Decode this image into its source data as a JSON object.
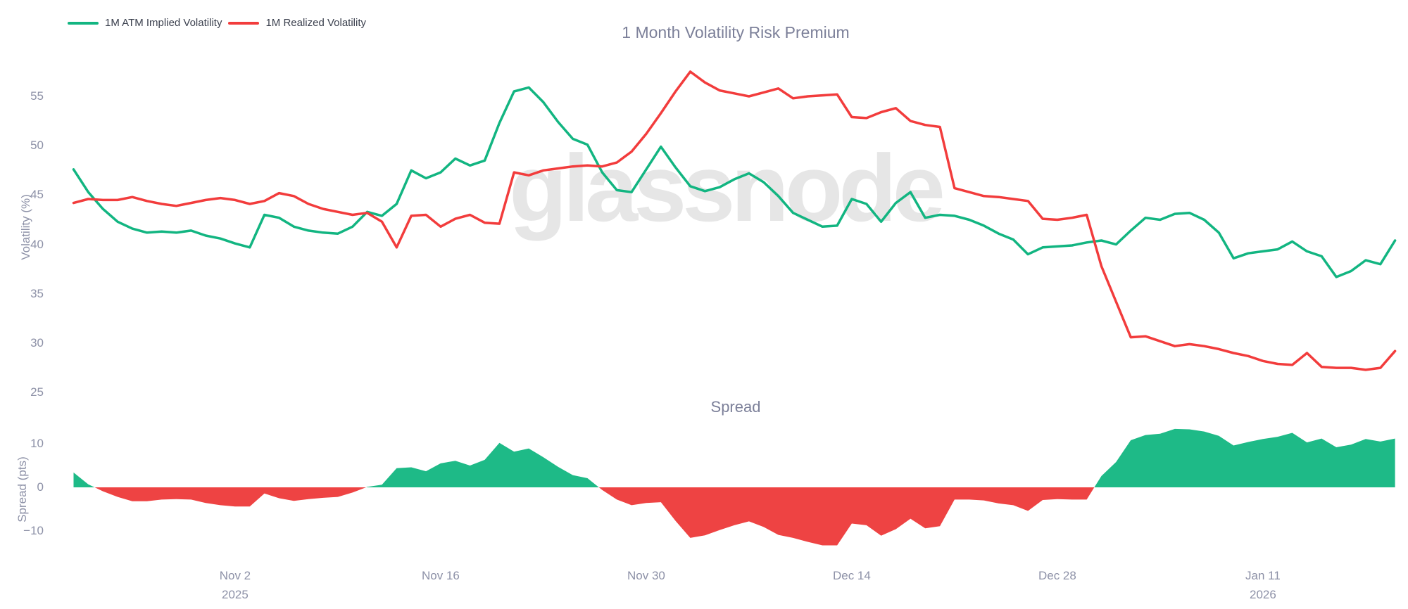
{
  "titles": {
    "main": "1 Month Volatility Risk Premium",
    "spread": "Spread"
  },
  "watermark": {
    "text": "glassnode"
  },
  "legend": {
    "items": [
      {
        "label": "1M ATM Implied Volatility",
        "color": "#12b581"
      },
      {
        "label": "1M Realized Volatility",
        "color": "#f23c3c"
      }
    ]
  },
  "axes": {
    "volatility_label": "Volatility (%)",
    "spread_label": "Spread (pts)",
    "volatility_ticks": [
      "55",
      "50",
      "45",
      "40",
      "35",
      "30",
      "25"
    ],
    "spread_ticks": [
      "10",
      "0",
      "−10"
    ],
    "x_ticks": [
      {
        "label": "Nov 2",
        "year": "2025",
        "day": 11
      },
      {
        "label": "Nov 16",
        "year": "",
        "day": 25
      },
      {
        "label": "Nov 30",
        "year": "",
        "day": 39
      },
      {
        "label": "Dec 14",
        "year": "",
        "day": 53
      },
      {
        "label": "Dec 28",
        "year": "",
        "day": 67
      },
      {
        "label": "Jan 11",
        "year": "2026",
        "day": 81
      }
    ]
  },
  "colors": {
    "implied_line": "#12b581",
    "realized_line": "#f23c3c",
    "spread_positive_fill": "#1eba87",
    "spread_negative_fill": "#ee4343",
    "tick_text": "#8d91a7",
    "title_text": "#7c8099",
    "watermark_text": "#e6e6e6"
  },
  "chart_data": [
    {
      "type": "line",
      "title": "1 Month Volatility Risk Premium",
      "ylabel": "Volatility (%)",
      "ylim": [
        24.5,
        58.5
      ],
      "grid": false,
      "legend_position": "top-left",
      "x_start_date": "2025-10-22",
      "x_end_date": "2026-01-20",
      "x_unit": "day",
      "x_tick_labels": [
        "Nov 2 2025",
        "Nov 16",
        "Nov 30",
        "Dec 14",
        "Dec 28",
        "Jan 11 2026"
      ],
      "series": [
        {
          "name": "1M ATM Implied Volatility",
          "color": "#12b581",
          "values": [
            47.6,
            45.3,
            43.6,
            42.3,
            41.6,
            41.2,
            41.3,
            41.2,
            41.4,
            40.9,
            40.6,
            40.1,
            39.7,
            43.0,
            42.7,
            41.8,
            41.4,
            41.2,
            41.1,
            41.8,
            43.3,
            42.9,
            44.1,
            47.5,
            46.7,
            47.3,
            48.7,
            48.0,
            48.5,
            52.3,
            55.5,
            55.9,
            54.4,
            52.4,
            50.7,
            50.1,
            47.3,
            45.5,
            45.3,
            47.6,
            49.9,
            47.8,
            45.9,
            45.4,
            45.8,
            46.6,
            47.2,
            46.3,
            44.9,
            43.2,
            42.5,
            41.8,
            41.9,
            44.6,
            44.1,
            42.3,
            44.2,
            45.3,
            42.7,
            43.0,
            42.9,
            42.5,
            41.9,
            41.1,
            40.5,
            39.0,
            39.7,
            39.8,
            39.9,
            40.2,
            40.4,
            40.0,
            41.4,
            42.7,
            42.5,
            43.1,
            43.2,
            42.5,
            41.2,
            38.6,
            39.1,
            39.3,
            39.5,
            40.3,
            39.3,
            38.8,
            36.7,
            37.3,
            38.4,
            38.0,
            40.4
          ]
        },
        {
          "name": "1M Realized Volatility",
          "color": "#f23c3c",
          "values": [
            44.2,
            44.6,
            44.5,
            44.5,
            44.8,
            44.4,
            44.1,
            43.9,
            44.2,
            44.5,
            44.7,
            44.5,
            44.1,
            44.4,
            45.2,
            44.9,
            44.1,
            43.6,
            43.3,
            43.0,
            43.2,
            42.3,
            39.7,
            42.9,
            43.0,
            41.8,
            42.6,
            43.0,
            42.2,
            42.1,
            47.3,
            47.0,
            47.5,
            47.7,
            47.9,
            48.0,
            47.9,
            48.3,
            49.4,
            51.2,
            53.3,
            55.5,
            57.5,
            56.4,
            55.6,
            55.3,
            55.0,
            55.4,
            55.8,
            54.8,
            55.0,
            55.1,
            55.2,
            52.9,
            52.8,
            53.4,
            53.8,
            52.5,
            52.1,
            51.9,
            45.7,
            45.3,
            44.9,
            44.8,
            44.6,
            44.4,
            42.6,
            42.5,
            42.7,
            43.0,
            37.8,
            34.2,
            30.6,
            30.7,
            30.2,
            29.7,
            29.9,
            29.7,
            29.4,
            29.0,
            28.7,
            28.2,
            27.9,
            27.8,
            29.0,
            27.6,
            27.5,
            27.5,
            27.3,
            27.5,
            29.2
          ]
        }
      ]
    },
    {
      "type": "area",
      "title": "Spread",
      "ylabel": "Spread (pts)",
      "ylim": [
        -15.5,
        14.5
      ],
      "grid": false,
      "note": "spread = implied minus realized; green where positive, red where negative",
      "values": [
        3.4,
        0.7,
        -0.9,
        -2.2,
        -3.2,
        -3.2,
        -2.8,
        -2.7,
        -2.8,
        -3.6,
        -4.1,
        -4.4,
        -4.4,
        -1.4,
        -2.5,
        -3.1,
        -2.7,
        -2.4,
        -2.2,
        -1.2,
        0.1,
        0.6,
        4.4,
        4.6,
        3.7,
        5.5,
        6.1,
        5.0,
        6.3,
        10.2,
        8.2,
        8.9,
        6.9,
        4.7,
        2.8,
        2.1,
        -0.6,
        -2.8,
        -4.1,
        -3.6,
        -3.4,
        -7.7,
        -11.6,
        -11.0,
        -9.8,
        -8.7,
        -7.8,
        -9.1,
        -10.9,
        -11.6,
        -12.5,
        -13.3,
        -13.3,
        -8.3,
        -8.7,
        -11.1,
        -9.6,
        -7.2,
        -9.4,
        -8.9,
        -2.8,
        -2.8,
        -3.0,
        -3.7,
        -4.1,
        -5.4,
        -2.9,
        -2.7,
        -2.8,
        -2.8,
        2.6,
        5.8,
        10.8,
        12.0,
        12.3,
        13.4,
        13.3,
        12.8,
        11.8,
        9.6,
        10.4,
        11.1,
        11.6,
        12.5,
        10.3,
        11.2,
        9.2,
        9.8,
        11.1,
        10.5,
        11.2
      ]
    }
  ]
}
